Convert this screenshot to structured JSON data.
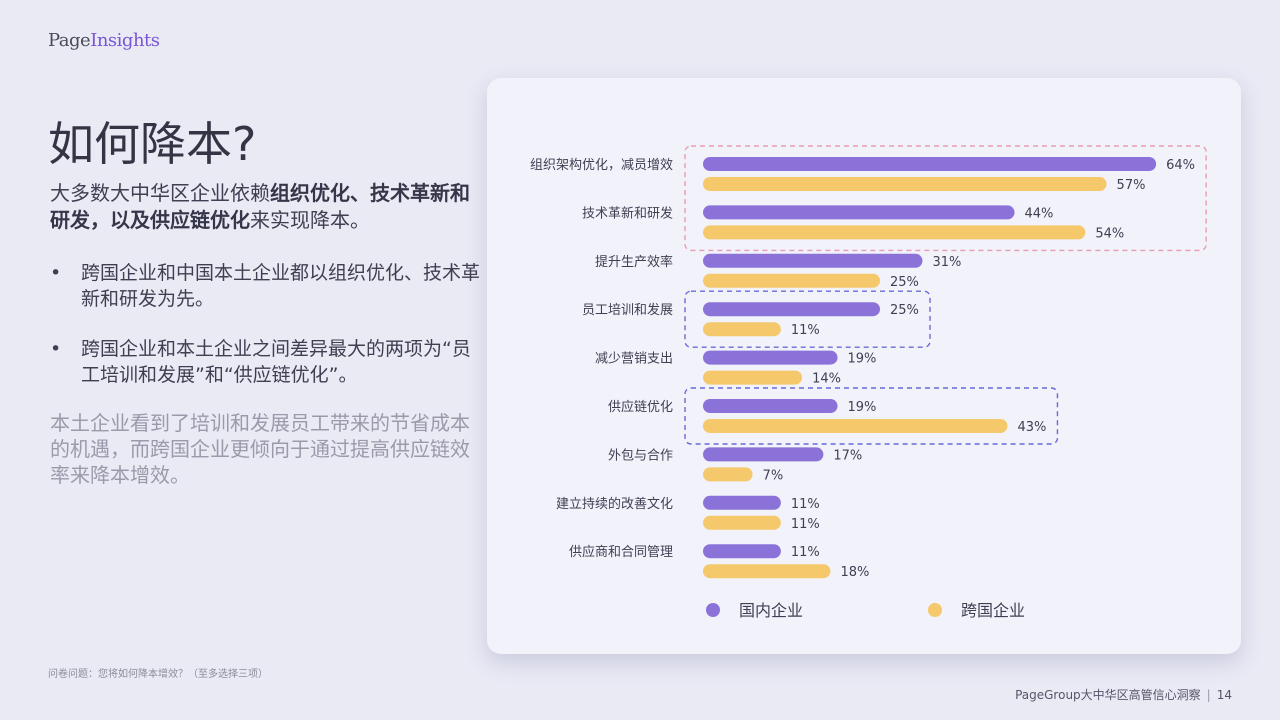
{
  "logo": {
    "part1": "Page",
    "part2": "Insights"
  },
  "title": "如何降本?",
  "lead": {
    "t1": "大多数大中华区企业依赖",
    "b1": "组织优化、技术革新和研发，以及供应链优化",
    "t2": "来实现降本。"
  },
  "bullets": [
    "跨国企业和中国本土企业都以组织优化、技术革新和研发为先。",
    "跨国企业和本土企业之间差异最大的两项为“员工培训和发展”和“供应链优化”。"
  ],
  "note": "本土企业看到了培训和发展员工带来的节省成本的机遇，而跨国企业更倾向于通过提高供应链效率来降本增效。",
  "footnote": "问卷问题：您将如何降本增效？（至多选择三项）",
  "footer": {
    "text": "PageGroup大中华区高管信心洞察",
    "page": "14"
  },
  "colors": {
    "domestic": "#8b72d9",
    "multinational": "#f5c86c",
    "highlight_pink": "#e89bb6",
    "highlight_blue": "#6b6bd6"
  },
  "chart_data": {
    "type": "bar",
    "orientation": "horizontal",
    "categories": [
      "组织架构优化，减员增效",
      "技术革新和研发",
      "提升生产效率",
      "员工培训和发展",
      "减少营销支出",
      "供应链优化",
      "外包与合作",
      "建立持续的改善文化",
      "供应商和合同管理"
    ],
    "series": [
      {
        "name": "国内企业",
        "values": [
          64,
          44,
          31,
          25,
          19,
          19,
          17,
          11,
          11
        ],
        "labels": [
          "64%",
          "44%",
          "31%",
          "25%",
          "19%",
          "19%",
          "17%",
          "11%",
          "11%"
        ]
      },
      {
        "name": "跨国企业",
        "values": [
          57,
          54,
          25,
          11,
          14,
          43,
          7,
          11,
          18
        ],
        "labels": [
          "57%",
          "54%",
          "25%",
          "11%",
          "14%",
          "43%",
          "7%",
          "11%",
          "18%"
        ]
      }
    ],
    "unit": "%",
    "legend_position": "bottom",
    "highlights": [
      {
        "categories": [
          0,
          1
        ],
        "color": "pink"
      },
      {
        "categories": [
          3
        ],
        "color": "blue"
      },
      {
        "categories": [
          5
        ],
        "color": "blue"
      }
    ]
  }
}
